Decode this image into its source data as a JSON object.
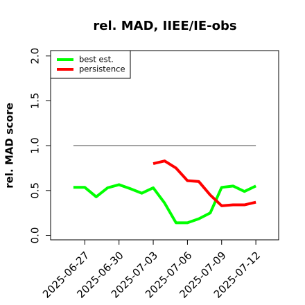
{
  "chart_data": {
    "type": "line",
    "title": "rel. MAD, IIEE/IE-obs",
    "ylabel": "rel. MAD score",
    "x": [
      "2025-06-26",
      "2025-06-27",
      "2025-06-28",
      "2025-06-29",
      "2025-06-30",
      "2025-07-01",
      "2025-07-02",
      "2025-07-03",
      "2025-07-04",
      "2025-07-05",
      "2025-07-06",
      "2025-07-07",
      "2025-07-08",
      "2025-07-09",
      "2025-07-10",
      "2025-07-11",
      "2025-07-12"
    ],
    "series": [
      {
        "name": "best est.",
        "color": "#00ff00",
        "values": [
          0.535,
          0.535,
          0.43,
          0.53,
          0.565,
          0.52,
          0.47,
          0.53,
          0.36,
          0.14,
          0.14,
          0.185,
          0.25,
          0.535,
          0.55,
          0.49,
          0.55
        ]
      },
      {
        "name": "persistence",
        "color": "#ff0000",
        "values": [
          null,
          null,
          null,
          null,
          null,
          null,
          null,
          0.8,
          0.83,
          0.75,
          0.61,
          0.6,
          0.45,
          0.33,
          0.34,
          0.34,
          0.37
        ]
      }
    ],
    "hline": 1.0,
    "hline_color": "#808080",
    "xlim": [
      "2025-06-24",
      "2025-07-14"
    ],
    "xticks": [
      "2025-06-27",
      "2025-06-30",
      "2025-07-03",
      "2025-07-06",
      "2025-07-09",
      "2025-07-12"
    ],
    "ylim": [
      -0.05,
      2.06
    ],
    "yticks": [
      0.0,
      0.5,
      1.0,
      1.5,
      2.0
    ],
    "legend": "top-left"
  }
}
